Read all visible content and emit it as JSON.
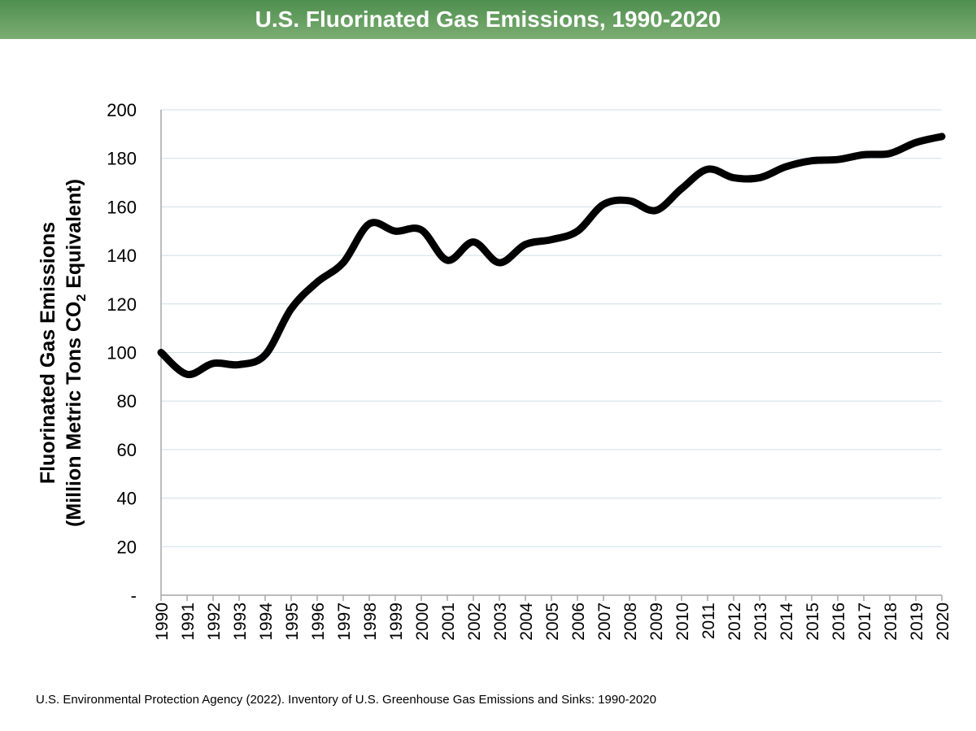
{
  "header": {
    "title": "U.S. Fluorinated Gas Emissions, 1990-2020"
  },
  "chart_data": {
    "type": "line",
    "title": "U.S. Fluorinated Gas Emissions, 1990-2020",
    "ylabel_line1": "Fluorinated Gas Emissions",
    "ylabel_line2_prefix": "(Million Metric Tons CO",
    "ylabel_line2_sub": "2",
    "ylabel_line2_suffix": " Equivalent)",
    "xlabel": "",
    "ylim": [
      0,
      200
    ],
    "yticks": [
      0,
      20,
      40,
      60,
      80,
      100,
      120,
      140,
      160,
      180,
      200
    ],
    "ytick_labels": [
      "-",
      "20",
      "40",
      "60",
      "80",
      "100",
      "120",
      "140",
      "160",
      "180",
      "200"
    ],
    "grid": true,
    "x": [
      "1990",
      "1991",
      "1992",
      "1993",
      "1994",
      "1995",
      "1996",
      "1997",
      "1998",
      "1999",
      "2000",
      "2001",
      "2002",
      "2003",
      "2004",
      "2005",
      "2006",
      "2007",
      "2008",
      "2009",
      "2010",
      "2011",
      "2012",
      "2013",
      "2014",
      "2015",
      "2016",
      "2017",
      "2018",
      "2019",
      "2020"
    ],
    "series": [
      {
        "values": [
          100,
          91,
          95.5,
          95,
          99,
          118,
          129,
          137,
          153,
          150,
          150.5,
          138,
          145.5,
          137,
          144.5,
          146.5,
          150,
          161,
          162.5,
          158.5,
          167.5,
          175.5,
          172,
          172,
          176.5,
          179,
          179.5,
          181.5,
          182,
          186.5,
          189
        ],
        "color": "#000000"
      }
    ]
  },
  "footer": {
    "source": "U.S. Environmental Protection Agency (2022). Inventory of U.S. Greenhouse Gas Emissions and Sinks: 1990-2020"
  }
}
